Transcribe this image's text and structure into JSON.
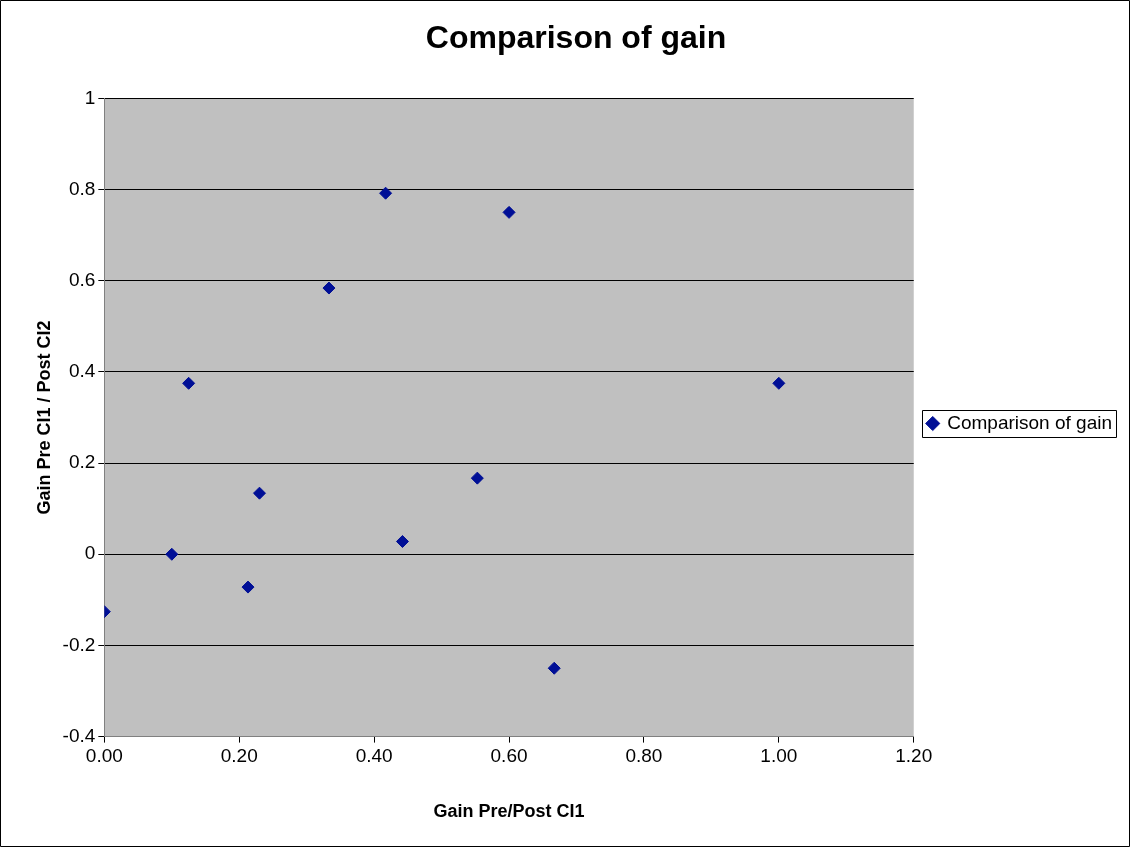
{
  "chart_data": {
    "type": "scatter",
    "title": "Comparison of gain",
    "xlabel": "Gain Pre/Post CI1",
    "ylabel": "Gain Pre CI1 / Post CI2",
    "x": [
      0,
      0.1,
      0.125,
      0.213,
      0.23,
      0.333,
      0.417,
      0.442,
      0.553,
      0.6,
      0.667,
      1.0
    ],
    "series": [
      {
        "name": "Comparison of gain",
        "color": "#000f96",
        "values": [
          -0.126,
          0,
          0.375,
          -0.072,
          0.134,
          0.584,
          0.792,
          0.028,
          0.167,
          0.75,
          -0.25,
          0.375
        ]
      }
    ],
    "xlim": [
      0,
      1.2
    ],
    "xticks": [
      {
        "value": 0,
        "label": "0.00"
      },
      {
        "value": 0.2,
        "label": "0.20"
      },
      {
        "value": 0.4,
        "label": "0.40"
      },
      {
        "value": 0.6,
        "label": "0.60"
      },
      {
        "value": 0.8,
        "label": "0.80"
      },
      {
        "value": 1,
        "label": "1.00"
      },
      {
        "value": 1.2,
        "label": "1.20"
      }
    ],
    "ylim": [
      -0.4,
      1
    ],
    "yticks": [
      -0.4,
      -0.2,
      0,
      0.2,
      0.4,
      0.6,
      0.8,
      1
    ],
    "grid": "y",
    "legend": "right",
    "marker": "diamond"
  }
}
